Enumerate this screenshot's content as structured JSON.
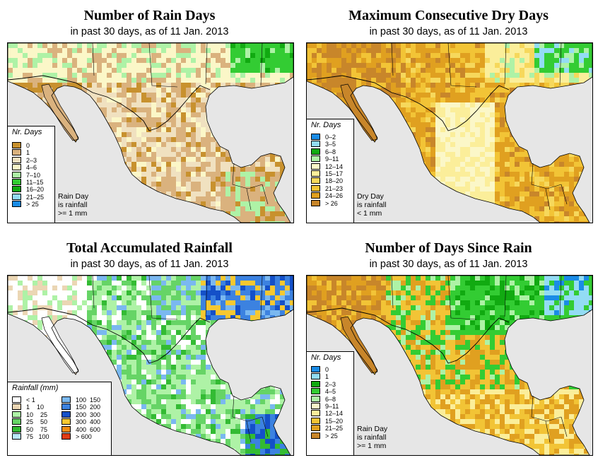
{
  "panels": [
    {
      "title": "Number of Rain Days",
      "subtitle": "in past 30 days, as of  11 Jan. 2013",
      "legend_title": "Nr. Days",
      "legend": [
        {
          "label": "0",
          "color": "#c8912e"
        },
        {
          "label": "1",
          "color": "#dab27e"
        },
        {
          "label": "2–3",
          "color": "#f0e1c0"
        },
        {
          "label": "4–6",
          "color": "#fbf7c8"
        },
        {
          "label": "7–10",
          "color": "#aef2a6"
        },
        {
          "label": "11–15",
          "color": "#33cc33"
        },
        {
          "label": "16–20",
          "color": "#11aa11"
        },
        {
          "label": "21–25",
          "color": "#93dcf4"
        },
        {
          "label": "> 25",
          "color": "#1a8ce6"
        }
      ],
      "note": [
        "Rain Day",
        "is rainfall",
        ">= 1 mm"
      ]
    },
    {
      "title": "Maximum Consecutive Dry Days",
      "subtitle": "in past 30 days, as of  11 Jan. 2013",
      "legend_title": "Nr. Days",
      "legend": [
        {
          "label": "0–2",
          "color": "#1a8ce6"
        },
        {
          "label": "3–5",
          "color": "#93dcf4"
        },
        {
          "label": "6–8",
          "color": "#11aa11"
        },
        {
          "label": "9–11",
          "color": "#aef2a6"
        },
        {
          "label": "12–14",
          "color": "#fbf7c8"
        },
        {
          "label": "15–17",
          "color": "#fbee9a"
        },
        {
          "label": "18–20",
          "color": "#f6d85c"
        },
        {
          "label": "21–23",
          "color": "#f2c436"
        },
        {
          "label": "24–26",
          "color": "#e0a020"
        },
        {
          "label": "> 26",
          "color": "#c8862a"
        }
      ],
      "note": [
        "Dry Day",
        "is rainfall",
        "< 1 mm"
      ]
    },
    {
      "title": "Total Accumulated Rainfall",
      "subtitle": "in past 30 days, as of  11 Jan. 2013",
      "legend_title": "Rainfall (mm)",
      "legend_left": [
        {
          "label": "< 1",
          "color": "#ffffff"
        },
        {
          "label": "1    10",
          "color": "#ebd6b4"
        },
        {
          "label": "10    25",
          "color": "#aef2a6"
        },
        {
          "label": "25    50",
          "color": "#66d466"
        },
        {
          "label": "50    75",
          "color": "#33bb33"
        },
        {
          "label": "75   100",
          "color": "#b8e8f8"
        }
      ],
      "legend_right": [
        {
          "label": "100  150",
          "color": "#7ab8f0"
        },
        {
          "label": "150  200",
          "color": "#3c82e0"
        },
        {
          "label": "200  300",
          "color": "#1450c8"
        },
        {
          "label": "300  400",
          "color": "#f6c830"
        },
        {
          "label": "400  600",
          "color": "#f08c14"
        },
        {
          "label": "> 600",
          "color": "#e03c14"
        }
      ]
    },
    {
      "title": "Number of Days Since Rain",
      "subtitle": "in past 30 days, as of  11 Jan. 2013",
      "legend_title": "Nr. Days",
      "legend": [
        {
          "label": "0",
          "color": "#1a8ce6"
        },
        {
          "label": "1",
          "color": "#93dcf4"
        },
        {
          "label": "2–3",
          "color": "#11aa11"
        },
        {
          "label": "4–5",
          "color": "#33cc33"
        },
        {
          "label": "6–8",
          "color": "#aef2a6"
        },
        {
          "label": "9–11",
          "color": "#fbf7c8"
        },
        {
          "label": "12–14",
          "color": "#fbee9a"
        },
        {
          "label": "15–20",
          "color": "#f2c436"
        },
        {
          "label": "21–25",
          "color": "#e0a020"
        },
        {
          "label": "> 25",
          "color": "#c8862a"
        }
      ],
      "note": [
        "Rain Day",
        "is rainfall",
        ">= 1 mm"
      ]
    }
  ],
  "colors": {
    "ocean": "#e6e6e6",
    "border": "#000000"
  }
}
